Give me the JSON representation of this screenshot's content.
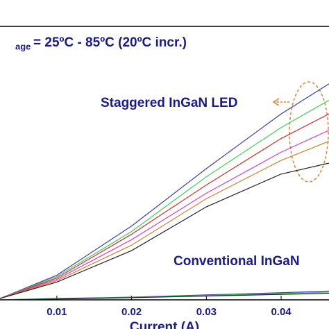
{
  "chart_data": {
    "type": "line",
    "x_label": "Current (A)",
    "annotations": [
      "age",
      "= 25ºC - 85ºC (20ºC incr.)",
      "Staggered InGaN LED",
      "Conventional InGaN"
    ],
    "x": [
      0.0024,
      0.01,
      0.02,
      0.03,
      0.04,
      0.0464
    ],
    "xlim": [
      0.0024,
      0.0464
    ],
    "xticks": [
      0.01,
      0.02,
      0.03,
      0.04
    ],
    "ylim": [
      0,
      100
    ],
    "series": [
      {
        "color": "#3a3ab0",
        "values": [
          0.5,
          9,
          27,
          48,
          68,
          79
        ]
      },
      {
        "color": "#3cd050",
        "values": [
          0.5,
          8.5,
          25,
          45,
          63,
          73
        ]
      },
      {
        "color": "#d03030",
        "values": [
          0.5,
          8,
          24,
          42,
          59,
          68
        ]
      },
      {
        "color": "#d040d0",
        "values": [
          0.5,
          7.5,
          22,
          39,
          54,
          62
        ]
      },
      {
        "color": "#d08030",
        "values": [
          0.5,
          7,
          20,
          37,
          51,
          58
        ]
      },
      {
        "color": "#202020",
        "values": [
          0.5,
          6.5,
          18,
          34,
          46,
          50
        ]
      },
      {
        "color": "#3a3ab0",
        "values": [
          0,
          0.5,
          1,
          1.8,
          2.6,
          3.2
        ]
      },
      {
        "color": "#3cd050",
        "values": [
          0,
          0.4,
          0.9,
          1.6,
          2.3,
          2.8
        ]
      },
      {
        "color": "#202020",
        "values": [
          0,
          0.3,
          0.8,
          1.4,
          2.0,
          2.4
        ]
      }
    ]
  }
}
